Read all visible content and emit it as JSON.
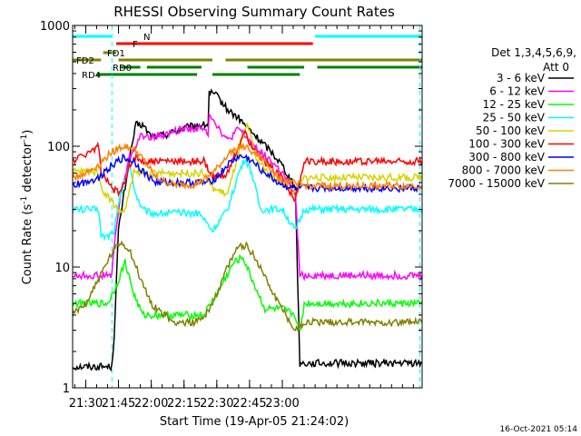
{
  "chart_data": {
    "type": "line",
    "title": "RHESSI Observing Summary Count Rates",
    "xlabel": "Start Time (19-Apr-05 21:24:02)",
    "ylabel_main": "Count Rate (s",
    "ylabel_sup1": "-1",
    "ylabel_mid": " detector",
    "ylabel_sup2": "-1",
    "ylabel_end": ")",
    "ylog": true,
    "ylim": [
      1,
      1000
    ],
    "xlim_min": [
      24,
      184
    ],
    "yticks": [
      1,
      10,
      100,
      1000
    ],
    "ytick_labels": [
      "1",
      "10",
      "100",
      "1000"
    ],
    "xticks_min": [
      30,
      45,
      60,
      75,
      90,
      105,
      120
    ],
    "xtick_labels": [
      "21:30",
      "21:45",
      "22:00",
      "22:15",
      "22:30",
      "22:45",
      "23:00"
    ],
    "timestamp": "16-Oct-2021 05:14",
    "legend": {
      "header1": "Det 1,3,4,5,6,9,",
      "header2": "Att 0",
      "entries": [
        {
          "label": "3 - 6 keV",
          "color": "#000000"
        },
        {
          "label": "6 - 12 keV",
          "color": "#ff00ff"
        },
        {
          "label": "12 - 25 keV",
          "color": "#00ff00"
        },
        {
          "label": "25 - 50 keV",
          "color": "#00ffff"
        },
        {
          "label": "50 - 100 keV",
          "color": "#d4d400"
        },
        {
          "label": "100 - 300 keV",
          "color": "#ff0000"
        },
        {
          "label": "300 - 800 keV",
          "color": "#0000ff"
        },
        {
          "label": "800 - 7000 keV",
          "color": "#ff8000"
        },
        {
          "label": "7000 - 15000 keV",
          "color": "#808000"
        }
      ]
    },
    "flag_bars": [
      {
        "label": "N",
        "color": "#00ffff",
        "segments": [
          [
            24,
            42
          ],
          [
            135,
            184
          ]
        ]
      },
      {
        "label": "F",
        "color": "#ff0000",
        "segments": [
          [
            44,
            134
          ]
        ]
      },
      {
        "label": "FD1",
        "color": "#808000",
        "segments": [
          [
            38,
            44
          ]
        ]
      },
      {
        "label": "FD2",
        "color": "#808000",
        "segments": [
          [
            24,
            37
          ],
          [
            45,
            88
          ],
          [
            94,
            184
          ]
        ]
      },
      {
        "label": "RD0",
        "color": "#008000",
        "segments": [
          [
            46,
            55
          ],
          [
            58,
            83
          ],
          [
            104,
            130
          ],
          [
            136,
            184
          ]
        ]
      },
      {
        "label": "RD4",
        "color": "#008000",
        "segments": [
          [
            35,
            81
          ],
          [
            88,
            128
          ]
        ]
      }
    ],
    "vlines_min": [
      {
        "t": 42,
        "color": "#00ffff",
        "style": "dashed"
      },
      {
        "t": 183,
        "color": "#00ffff",
        "style": "dashed"
      }
    ],
    "series": [
      {
        "name": "3 - 6 keV",
        "color": "#000000",
        "points": [
          [
            24,
            1.5
          ],
          [
            42,
            1.5
          ],
          [
            43,
            2.7
          ],
          [
            45,
            20
          ],
          [
            50,
            80
          ],
          [
            53,
            150
          ],
          [
            56,
            150
          ],
          [
            60,
            120
          ],
          [
            67,
            125
          ],
          [
            74,
            140
          ],
          [
            82,
            150
          ],
          [
            86,
            150
          ],
          [
            86.5,
            280
          ],
          [
            90,
            260
          ],
          [
            95,
            200
          ],
          [
            100,
            170
          ],
          [
            108,
            120
          ],
          [
            115,
            90
          ],
          [
            120,
            70
          ],
          [
            126,
            45
          ],
          [
            128,
            1.6
          ],
          [
            184,
            1.6
          ]
        ]
      },
      {
        "name": "6 - 12 keV",
        "color": "#ff00ff",
        "points": [
          [
            24,
            8.5
          ],
          [
            42,
            8.5
          ],
          [
            43,
            15
          ],
          [
            46,
            40
          ],
          [
            50,
            80
          ],
          [
            55,
            120
          ],
          [
            60,
            120
          ],
          [
            67,
            125
          ],
          [
            74,
            140
          ],
          [
            82,
            140
          ],
          [
            86,
            130
          ],
          [
            86.5,
            190
          ],
          [
            90,
            150
          ],
          [
            95,
            110
          ],
          [
            100,
            140
          ],
          [
            105,
            110
          ],
          [
            110,
            90
          ],
          [
            115,
            75
          ],
          [
            120,
            60
          ],
          [
            126,
            40
          ],
          [
            128,
            8.5
          ],
          [
            184,
            8.5
          ]
        ]
      },
      {
        "name": "12 - 25 keV",
        "color": "#00ff00",
        "points": [
          [
            24,
            5
          ],
          [
            40,
            5
          ],
          [
            44,
            7
          ],
          [
            48,
            11
          ],
          [
            52,
            6
          ],
          [
            56,
            4
          ],
          [
            60,
            4
          ],
          [
            80,
            4
          ],
          [
            84,
            4
          ],
          [
            90,
            6
          ],
          [
            98,
            11
          ],
          [
            102,
            12
          ],
          [
            106,
            8
          ],
          [
            112,
            4.5
          ],
          [
            120,
            4.5
          ],
          [
            126,
            4
          ],
          [
            128,
            2.8
          ],
          [
            130,
            5
          ],
          [
            184,
            5
          ]
        ]
      },
      {
        "name": "25 - 50 keV",
        "color": "#00ffff",
        "points": [
          [
            24,
            30
          ],
          [
            36,
            30
          ],
          [
            37,
            18
          ],
          [
            40,
            18
          ],
          [
            43,
            20
          ],
          [
            46,
            40
          ],
          [
            50,
            70
          ],
          [
            53,
            40
          ],
          [
            56,
            30
          ],
          [
            60,
            28
          ],
          [
            82,
            28
          ],
          [
            88,
            20
          ],
          [
            95,
            30
          ],
          [
            100,
            60
          ],
          [
            103,
            80
          ],
          [
            106,
            60
          ],
          [
            110,
            30
          ],
          [
            120,
            30
          ],
          [
            126,
            20
          ],
          [
            130,
            30
          ],
          [
            184,
            30
          ]
        ]
      },
      {
        "name": "50 - 100 keV",
        "color": "#d4d400",
        "points": [
          [
            24,
            62
          ],
          [
            36,
            62
          ],
          [
            37,
            45
          ],
          [
            42,
            35
          ],
          [
            46,
            28
          ],
          [
            48,
            30
          ],
          [
            52,
            60
          ],
          [
            58,
            60
          ],
          [
            80,
            60
          ],
          [
            84,
            60
          ],
          [
            88,
            45
          ],
          [
            95,
            40
          ],
          [
            100,
            90
          ],
          [
            104,
            150
          ],
          [
            108,
            80
          ],
          [
            115,
            55
          ],
          [
            120,
            50
          ],
          [
            126,
            40
          ],
          [
            130,
            55
          ],
          [
            184,
            55
          ]
        ]
      },
      {
        "name": "100 - 300 keV",
        "color": "#ff0000",
        "points": [
          [
            24,
            75
          ],
          [
            36,
            100
          ],
          [
            37,
            60
          ],
          [
            42,
            45
          ],
          [
            46,
            40
          ],
          [
            50,
            70
          ],
          [
            53,
            80
          ],
          [
            56,
            75
          ],
          [
            60,
            75
          ],
          [
            80,
            75
          ],
          [
            84,
            75
          ],
          [
            88,
            55
          ],
          [
            95,
            60
          ],
          [
            100,
            100
          ],
          [
            103,
            130
          ],
          [
            106,
            100
          ],
          [
            110,
            80
          ],
          [
            120,
            55
          ],
          [
            126,
            35
          ],
          [
            130,
            75
          ],
          [
            184,
            75
          ]
        ]
      },
      {
        "name": "300 - 800 keV",
        "color": "#0000ff",
        "points": [
          [
            24,
            47
          ],
          [
            36,
            55
          ],
          [
            38,
            60
          ],
          [
            42,
            70
          ],
          [
            47,
            80
          ],
          [
            52,
            75
          ],
          [
            57,
            60
          ],
          [
            62,
            50
          ],
          [
            80,
            50
          ],
          [
            86,
            50
          ],
          [
            90,
            55
          ],
          [
            95,
            70
          ],
          [
            100,
            82
          ],
          [
            104,
            80
          ],
          [
            110,
            65
          ],
          [
            118,
            50
          ],
          [
            124,
            45
          ],
          [
            130,
            45
          ],
          [
            184,
            45
          ]
        ]
      },
      {
        "name": "800 - 7000 keV",
        "color": "#ff8000",
        "points": [
          [
            24,
            55
          ],
          [
            30,
            60
          ],
          [
            36,
            70
          ],
          [
            42,
            90
          ],
          [
            47,
            100
          ],
          [
            52,
            95
          ],
          [
            57,
            75
          ],
          [
            62,
            55
          ],
          [
            70,
            48
          ],
          [
            80,
            48
          ],
          [
            86,
            55
          ],
          [
            90,
            65
          ],
          [
            95,
            85
          ],
          [
            100,
            100
          ],
          [
            105,
            95
          ],
          [
            112,
            75
          ],
          [
            118,
            55
          ],
          [
            124,
            50
          ],
          [
            130,
            47
          ],
          [
            184,
            47
          ]
        ]
      },
      {
        "name": "7000 - 15000 keV",
        "color": "#808000",
        "points": [
          [
            24,
            4
          ],
          [
            30,
            5
          ],
          [
            36,
            8
          ],
          [
            42,
            13
          ],
          [
            46,
            16
          ],
          [
            50,
            14
          ],
          [
            55,
            8
          ],
          [
            60,
            5
          ],
          [
            70,
            3.5
          ],
          [
            80,
            3.5
          ],
          [
            85,
            4
          ],
          [
            90,
            6
          ],
          [
            95,
            10
          ],
          [
            100,
            15
          ],
          [
            104,
            15
          ],
          [
            110,
            10
          ],
          [
            116,
            6
          ],
          [
            120,
            4.5
          ],
          [
            126,
            3
          ],
          [
            130,
            3.5
          ],
          [
            184,
            3.5
          ]
        ]
      }
    ]
  }
}
